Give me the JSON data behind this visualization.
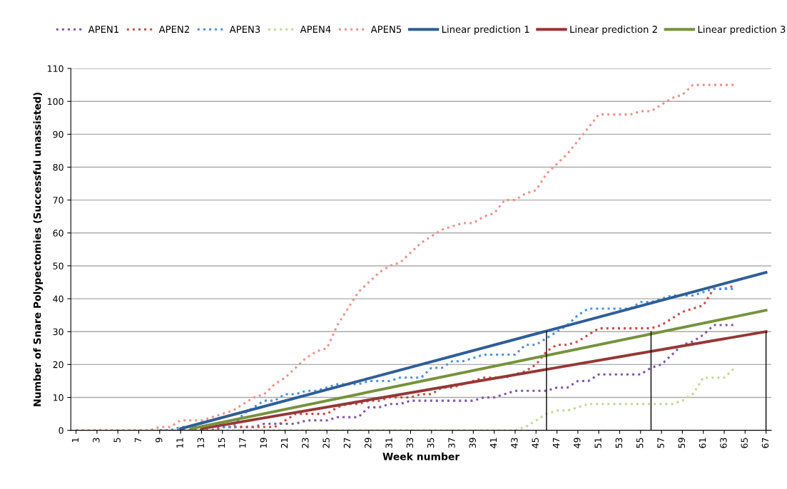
{
  "chart_data": {
    "type": "line",
    "xlabel": "Week number",
    "ylabel": "Number of Snare Polypectomies (Successful unassisted)",
    "x": [
      1,
      2,
      3,
      4,
      5,
      6,
      7,
      8,
      9,
      10,
      11,
      12,
      13,
      14,
      15,
      16,
      17,
      18,
      19,
      20,
      21,
      22,
      23,
      24,
      25,
      26,
      27,
      28,
      29,
      30,
      31,
      32,
      33,
      34,
      35,
      36,
      37,
      38,
      39,
      40,
      41,
      42,
      43,
      44,
      45,
      46,
      47,
      48,
      49,
      50,
      51,
      52,
      53,
      54,
      55,
      56,
      57,
      58,
      59,
      60,
      61,
      62,
      63,
      64
    ],
    "xlim": [
      0.5,
      67.5
    ],
    "xticks": [
      1,
      3,
      5,
      7,
      9,
      11,
      13,
      15,
      17,
      19,
      21,
      23,
      25,
      27,
      29,
      31,
      33,
      35,
      37,
      39,
      41,
      43,
      45,
      47,
      49,
      51,
      53,
      55,
      57,
      59,
      61,
      63,
      65,
      67
    ],
    "ylim": [
      0,
      110
    ],
    "yticks": [
      0,
      10,
      20,
      30,
      40,
      50,
      60,
      70,
      80,
      90,
      100,
      110
    ],
    "grid": "y",
    "legend": "top",
    "series": [
      {
        "name": "APEN1",
        "color": "#7e57a6",
        "line_style": "dotted",
        "values": [
          null,
          null,
          null,
          null,
          null,
          null,
          null,
          null,
          0,
          0,
          0,
          0,
          0,
          0,
          1,
          1,
          1,
          1,
          2,
          2,
          2,
          2,
          3,
          3,
          3,
          4,
          4,
          4,
          7,
          7,
          8,
          8,
          9,
          9,
          9,
          9,
          9,
          9,
          9,
          10,
          10,
          11,
          12,
          12,
          12,
          12,
          13,
          13,
          15,
          15,
          17,
          17,
          17,
          17,
          17,
          19,
          20,
          23,
          26,
          27,
          29,
          32,
          32,
          32
        ]
      },
      {
        "name": "APEN2",
        "color": "#c0504d",
        "line_style": "dotted",
        "values": [
          null,
          null,
          null,
          null,
          null,
          null,
          null,
          null,
          0,
          0,
          0,
          0,
          0,
          0,
          1,
          1,
          1,
          1,
          1,
          1,
          3,
          5,
          5,
          5,
          5,
          7,
          8,
          8,
          9,
          9,
          10,
          10,
          10,
          11,
          11,
          13,
          13,
          14,
          15,
          16,
          16,
          16,
          17,
          18,
          20,
          24,
          26,
          26,
          27,
          29,
          31,
          31,
          31,
          31,
          31,
          31,
          32,
          34,
          36,
          37,
          38,
          43,
          43,
          44
        ]
      },
      {
        "name": "APEN3",
        "color": "#4f8fdb",
        "line_style": "dotted",
        "values": [
          null,
          null,
          null,
          null,
          null,
          null,
          null,
          null,
          0,
          0,
          1,
          1,
          1,
          1,
          1,
          1,
          5,
          7,
          9,
          9,
          11,
          11,
          12,
          12,
          13,
          14,
          14,
          14,
          15,
          15,
          15,
          16,
          16,
          16,
          19,
          19,
          21,
          21,
          22,
          23,
          23,
          23,
          23,
          26,
          26,
          28,
          30,
          32,
          35,
          37,
          37,
          37,
          37,
          37,
          39,
          39,
          40,
          41,
          41,
          41,
          42,
          43,
          43,
          43
        ]
      },
      {
        "name": "APEN4",
        "color": "#c3d69b",
        "line_style": "dotted",
        "values": [
          0,
          0,
          0,
          0,
          0,
          0,
          0,
          0,
          0,
          0,
          0,
          0,
          0,
          0,
          0,
          0,
          0,
          0,
          0,
          0,
          0,
          0,
          0,
          0,
          0,
          0,
          0,
          0,
          0,
          0,
          0,
          0,
          0,
          0,
          0,
          0,
          0,
          0,
          0,
          0,
          0,
          0,
          0,
          1,
          3,
          5,
          6,
          6,
          7,
          8,
          8,
          8,
          8,
          8,
          8,
          8,
          8,
          8,
          9,
          11,
          16,
          16,
          16,
          19
        ]
      },
      {
        "name": "APEN5",
        "color": "#e6958f",
        "line_style": "dotted",
        "values": [
          0,
          0,
          0,
          0,
          0,
          0,
          0,
          0,
          1,
          1,
          3,
          3,
          3,
          4,
          5,
          6,
          8,
          10,
          11,
          14,
          16,
          19,
          22,
          24,
          25,
          32,
          37,
          42,
          45,
          48,
          50,
          51,
          54,
          57,
          59,
          61,
          62,
          63,
          63,
          65,
          66,
          70,
          70,
          72,
          73,
          78,
          81,
          84,
          88,
          92,
          96,
          96,
          96,
          96,
          97,
          97,
          99,
          101,
          102,
          105,
          105,
          105,
          105,
          105
        ]
      },
      {
        "name": "Linear prediction 1",
        "color": "#2e5e96",
        "line_style": "solid",
        "x": [
          11,
          67
        ],
        "values": [
          0.5,
          48
        ]
      },
      {
        "name": "Linear prediction 2",
        "color": "#953735",
        "line_style": "solid",
        "x": [
          13,
          67
        ],
        "values": [
          0.5,
          30
        ]
      },
      {
        "name": "Linear prediction 3",
        "color": "#76923c",
        "line_style": "solid",
        "x": [
          12,
          67
        ],
        "values": [
          0.5,
          36.5
        ]
      },
      {
        "color": "#000000",
        "line_style": "solid",
        "x": [
          46,
          46
        ],
        "values": [
          0,
          30
        ]
      },
      {
        "color": "#000000",
        "line_style": "solid",
        "x": [
          56,
          56
        ],
        "values": [
          0,
          30
        ]
      },
      {
        "color": "#000000",
        "line_style": "solid",
        "x": [
          67,
          67
        ],
        "values": [
          0,
          30
        ]
      }
    ]
  }
}
